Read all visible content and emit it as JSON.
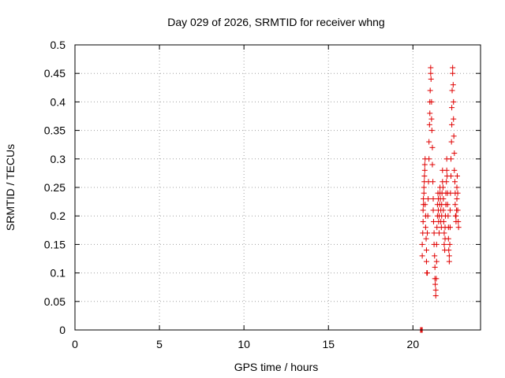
{
  "chart_data": {
    "type": "scatter",
    "title": "Day 029 of 2026, SRMTID for receiver whng",
    "xlabel": "GPS time / hours",
    "ylabel": "SRMTID / TECUs",
    "xlim": [
      0,
      24
    ],
    "ylim": [
      0,
      0.5
    ],
    "xticks": [
      0,
      5,
      10,
      15,
      20
    ],
    "xtick_labels": [
      "0",
      "5",
      "10",
      "15",
      "20"
    ],
    "yticks": [
      0,
      0.05,
      0.1,
      0.15,
      0.2,
      0.25,
      0.3,
      0.35,
      0.4,
      0.45,
      0.5
    ],
    "ytick_labels": [
      "0",
      "0.05",
      "0.1",
      "0.15",
      "0.2",
      "0.25",
      "0.3",
      "0.35",
      "0.4",
      "0.45",
      "0.5"
    ],
    "grid": true,
    "marker": "plus",
    "color": "#e00000",
    "series": [
      {
        "name": "SRMTID",
        "points": [
          [
            20.45,
            0.0
          ],
          [
            20.5,
            0.0
          ],
          [
            20.55,
            0.0
          ],
          [
            20.55,
            0.13
          ],
          [
            20.55,
            0.15
          ],
          [
            20.58,
            0.17
          ],
          [
            20.6,
            0.19
          ],
          [
            20.6,
            0.21
          ],
          [
            20.62,
            0.22
          ],
          [
            20.62,
            0.23
          ],
          [
            20.65,
            0.24
          ],
          [
            20.65,
            0.25
          ],
          [
            20.67,
            0.26
          ],
          [
            20.68,
            0.27
          ],
          [
            20.7,
            0.28
          ],
          [
            20.7,
            0.29
          ],
          [
            20.72,
            0.3
          ],
          [
            20.72,
            0.22
          ],
          [
            20.75,
            0.2
          ],
          [
            20.75,
            0.18
          ],
          [
            20.78,
            0.16
          ],
          [
            20.8,
            0.14
          ],
          [
            20.8,
            0.12
          ],
          [
            20.82,
            0.1
          ],
          [
            20.85,
            0.1
          ],
          [
            20.85,
            0.17
          ],
          [
            20.88,
            0.2
          ],
          [
            20.9,
            0.23
          ],
          [
            20.92,
            0.26
          ],
          [
            20.95,
            0.3
          ],
          [
            20.95,
            0.33
          ],
          [
            20.98,
            0.36
          ],
          [
            21.0,
            0.38
          ],
          [
            21.0,
            0.4
          ],
          [
            21.02,
            0.42
          ],
          [
            21.05,
            0.45
          ],
          [
            21.05,
            0.46
          ],
          [
            21.07,
            0.44
          ],
          [
            21.1,
            0.4
          ],
          [
            21.1,
            0.37
          ],
          [
            21.12,
            0.35
          ],
          [
            21.15,
            0.32
          ],
          [
            21.15,
            0.29
          ],
          [
            21.18,
            0.26
          ],
          [
            21.2,
            0.23
          ],
          [
            21.2,
            0.21
          ],
          [
            21.22,
            0.19
          ],
          [
            21.25,
            0.17
          ],
          [
            21.25,
            0.15
          ],
          [
            21.28,
            0.13
          ],
          [
            21.3,
            0.11
          ],
          [
            21.3,
            0.09
          ],
          [
            21.32,
            0.08
          ],
          [
            21.35,
            0.07
          ],
          [
            21.35,
            0.06
          ],
          [
            21.38,
            0.09
          ],
          [
            21.4,
            0.12
          ],
          [
            21.4,
            0.15
          ],
          [
            21.42,
            0.18
          ],
          [
            21.45,
            0.2
          ],
          [
            21.45,
            0.22
          ],
          [
            21.48,
            0.24
          ],
          [
            21.5,
            0.23
          ],
          [
            21.5,
            0.21
          ],
          [
            21.52,
            0.19
          ],
          [
            21.55,
            0.17
          ],
          [
            21.55,
            0.2
          ],
          [
            21.58,
            0.22
          ],
          [
            21.6,
            0.24
          ],
          [
            21.6,
            0.25
          ],
          [
            21.62,
            0.23
          ],
          [
            21.65,
            0.21
          ],
          [
            21.65,
            0.19
          ],
          [
            21.68,
            0.18
          ],
          [
            21.7,
            0.2
          ],
          [
            21.7,
            0.22
          ],
          [
            21.72,
            0.24
          ],
          [
            21.75,
            0.26
          ],
          [
            21.75,
            0.28
          ],
          [
            21.78,
            0.25
          ],
          [
            21.8,
            0.23
          ],
          [
            21.8,
            0.21
          ],
          [
            21.82,
            0.19
          ],
          [
            21.85,
            0.17
          ],
          [
            21.85,
            0.15
          ],
          [
            21.88,
            0.14
          ],
          [
            21.9,
            0.16
          ],
          [
            21.9,
            0.18
          ],
          [
            21.92,
            0.2
          ],
          [
            21.95,
            0.22
          ],
          [
            21.95,
            0.24
          ],
          [
            21.98,
            0.26
          ],
          [
            22.0,
            0.28
          ],
          [
            22.0,
            0.3
          ],
          [
            22.02,
            0.27
          ],
          [
            22.05,
            0.24
          ],
          [
            22.05,
            0.22
          ],
          [
            22.08,
            0.2
          ],
          [
            22.1,
            0.18
          ],
          [
            22.1,
            0.16
          ],
          [
            22.12,
            0.14
          ],
          [
            22.15,
            0.13
          ],
          [
            22.15,
            0.12
          ],
          [
            22.18,
            0.15
          ],
          [
            22.2,
            0.18
          ],
          [
            22.2,
            0.21
          ],
          [
            22.22,
            0.24
          ],
          [
            22.25,
            0.27
          ],
          [
            22.25,
            0.3
          ],
          [
            22.28,
            0.33
          ],
          [
            22.3,
            0.36
          ],
          [
            22.3,
            0.39
          ],
          [
            22.32,
            0.42
          ],
          [
            22.35,
            0.45
          ],
          [
            22.35,
            0.46
          ],
          [
            22.38,
            0.43
          ],
          [
            22.4,
            0.4
          ],
          [
            22.4,
            0.37
          ],
          [
            22.42,
            0.34
          ],
          [
            22.45,
            0.31
          ],
          [
            22.45,
            0.28
          ],
          [
            22.48,
            0.26
          ],
          [
            22.5,
            0.24
          ],
          [
            22.5,
            0.22
          ],
          [
            22.52,
            0.2
          ],
          [
            22.55,
            0.19
          ],
          [
            22.55,
            0.2
          ],
          [
            22.58,
            0.21
          ],
          [
            22.6,
            0.23
          ],
          [
            22.6,
            0.25
          ],
          [
            22.62,
            0.27
          ],
          [
            22.65,
            0.24
          ],
          [
            22.65,
            0.21
          ],
          [
            22.68,
            0.19
          ],
          [
            22.7,
            0.18
          ]
        ]
      }
    ]
  }
}
